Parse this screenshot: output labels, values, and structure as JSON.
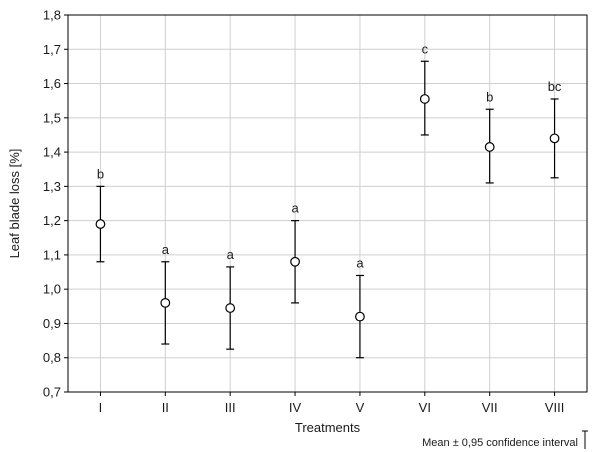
{
  "chart_data": {
    "type": "scatter",
    "title": "",
    "xlabel": "Treatments",
    "ylabel": "Leaf blade loss [%]",
    "ylim": [
      0.7,
      1.8
    ],
    "yticks": [
      "0,7",
      "0,8",
      "0,9",
      "1,0",
      "1,1",
      "1,2",
      "1,3",
      "1,4",
      "1,5",
      "1,6",
      "1,7",
      "1,8"
    ],
    "ytick_values": [
      0.7,
      0.8,
      0.9,
      1.0,
      1.1,
      1.2,
      1.3,
      1.4,
      1.5,
      1.6,
      1.7,
      1.8
    ],
    "grid": true,
    "categories": [
      "I",
      "II",
      "III",
      "IV",
      "V",
      "VI",
      "VII",
      "VIII"
    ],
    "means": [
      1.19,
      0.96,
      0.945,
      1.08,
      0.92,
      1.555,
      1.415,
      1.44
    ],
    "ci_lower": [
      1.08,
      0.84,
      0.825,
      0.96,
      0.8,
      1.45,
      1.31,
      1.325
    ],
    "ci_upper": [
      1.3,
      1.08,
      1.065,
      1.2,
      1.04,
      1.665,
      1.525,
      1.555
    ],
    "group_labels": [
      "b",
      "a",
      "a",
      "a",
      "a",
      "c",
      "b",
      "bc"
    ],
    "legend_note": "Mean ± 0,95 confidence interval"
  }
}
